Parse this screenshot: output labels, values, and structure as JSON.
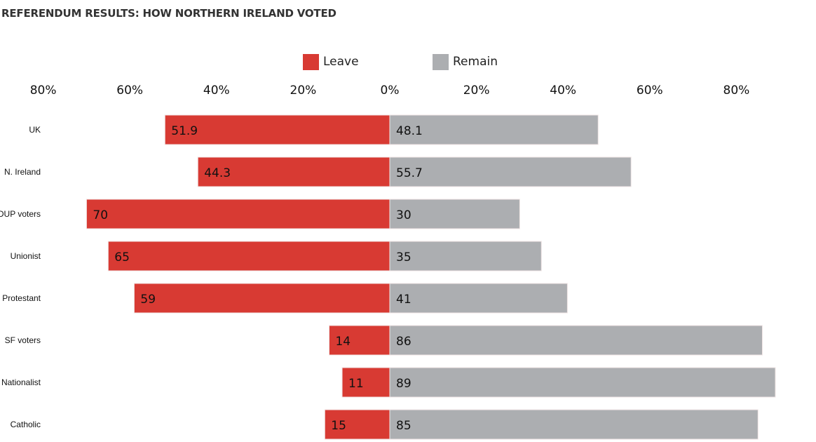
{
  "chart_data": {
    "type": "bar",
    "orientation": "horizontal-diverging",
    "title": "REFERENDUM RESULTS: HOW NORTHERN IRELAND VOTED",
    "categories": [
      "UK",
      "N. Ireland",
      "DUP voters",
      "Unionist",
      "Protestant",
      "SF voters",
      "Nationalist",
      "Catholic"
    ],
    "series": [
      {
        "name": "Leave",
        "color": "#d83a33",
        "direction": "left",
        "values": [
          51.9,
          44.3,
          70,
          65,
          59,
          14,
          11,
          15
        ],
        "labels": [
          "51.9",
          "44.3",
          "70",
          "65",
          "59",
          "14",
          "11",
          "15"
        ]
      },
      {
        "name": "Remain",
        "color": "#acaeb1",
        "direction": "right",
        "values": [
          48.1,
          55.7,
          30,
          35,
          41,
          86,
          89,
          85
        ],
        "labels": [
          "48.1",
          "55.7",
          "30",
          "35",
          "41",
          "86",
          "89",
          "85"
        ]
      }
    ],
    "xlim": [
      -80,
      80
    ],
    "xticks": [
      -80,
      -60,
      -40,
      -20,
      0,
      20,
      40,
      60,
      80
    ],
    "xtick_labels": [
      "80%",
      "60%",
      "40%",
      "20%",
      "0%",
      "20%",
      "40%",
      "60%",
      "80%"
    ],
    "legend": "top-center",
    "grid": false
  }
}
